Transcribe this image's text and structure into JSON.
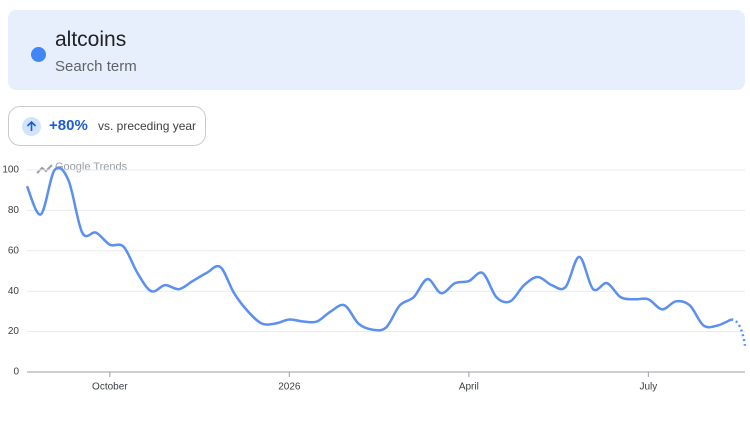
{
  "header": {
    "term": "altcoins",
    "subtitle": "Search term"
  },
  "comparison": {
    "change": "+80%",
    "label": "vs. preceding year"
  },
  "chart_data": {
    "type": "line",
    "watermark": "Google Trends",
    "categories": [
      null,
      null,
      null,
      null,
      null,
      null,
      "October",
      null,
      null,
      null,
      null,
      null,
      null,
      null,
      null,
      null,
      null,
      null,
      null,
      "2026",
      null,
      null,
      null,
      null,
      null,
      null,
      null,
      null,
      null,
      null,
      null,
      null,
      "April",
      null,
      null,
      null,
      null,
      null,
      null,
      null,
      null,
      null,
      null,
      null,
      null,
      "July",
      null,
      null,
      null,
      null,
      null,
      null,
      null
    ],
    "series": [
      {
        "name": "altcoins",
        "color": "#5b8ff0",
        "values": [
          92,
          78,
          100,
          95,
          69,
          69,
          63,
          62,
          49,
          40,
          43,
          41,
          45,
          49,
          52,
          39,
          30,
          24,
          24,
          26,
          25,
          25,
          30,
          33,
          24,
          21,
          22,
          33,
          37,
          46,
          39,
          44,
          45,
          49,
          37,
          35,
          43,
          47,
          43,
          42,
          57,
          41,
          44,
          37,
          36,
          36,
          31,
          35,
          33,
          23,
          23,
          26,
          13
        ]
      }
    ],
    "ylim": [
      0,
      100
    ],
    "yticks": [
      0,
      20,
      40,
      60,
      80,
      100
    ],
    "grid": true
  }
}
